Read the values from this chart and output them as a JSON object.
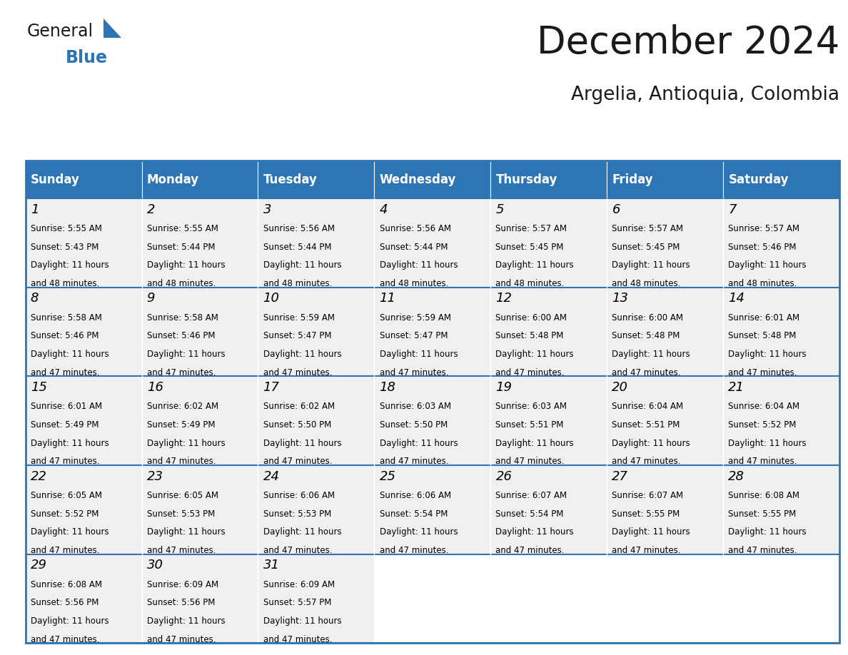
{
  "title": "December 2024",
  "subtitle": "Argelia, Antioquia, Colombia",
  "header_color": "#2E75B6",
  "header_text_color": "#FFFFFF",
  "day_names": [
    "Sunday",
    "Monday",
    "Tuesday",
    "Wednesday",
    "Thursday",
    "Friday",
    "Saturday"
  ],
  "cell_bg_color": "#F0F0F0",
  "border_color": "#2E75B6",
  "text_color": "#000000",
  "title_color": "#1a1a1a",
  "subtitle_color": "#1a1a1a",
  "logo_general_color": "#1a1a1a",
  "logo_blue_color": "#2E75B6",
  "logo_triangle_color": "#2E75B6",
  "days": [
    {
      "day": 1,
      "col": 0,
      "row": 0,
      "sunrise": "5:55 AM",
      "sunset": "5:43 PM",
      "daylight_hours": 11,
      "daylight_minutes": 48
    },
    {
      "day": 2,
      "col": 1,
      "row": 0,
      "sunrise": "5:55 AM",
      "sunset": "5:44 PM",
      "daylight_hours": 11,
      "daylight_minutes": 48
    },
    {
      "day": 3,
      "col": 2,
      "row": 0,
      "sunrise": "5:56 AM",
      "sunset": "5:44 PM",
      "daylight_hours": 11,
      "daylight_minutes": 48
    },
    {
      "day": 4,
      "col": 3,
      "row": 0,
      "sunrise": "5:56 AM",
      "sunset": "5:44 PM",
      "daylight_hours": 11,
      "daylight_minutes": 48
    },
    {
      "day": 5,
      "col": 4,
      "row": 0,
      "sunrise": "5:57 AM",
      "sunset": "5:45 PM",
      "daylight_hours": 11,
      "daylight_minutes": 48
    },
    {
      "day": 6,
      "col": 5,
      "row": 0,
      "sunrise": "5:57 AM",
      "sunset": "5:45 PM",
      "daylight_hours": 11,
      "daylight_minutes": 48
    },
    {
      "day": 7,
      "col": 6,
      "row": 0,
      "sunrise": "5:57 AM",
      "sunset": "5:46 PM",
      "daylight_hours": 11,
      "daylight_minutes": 48
    },
    {
      "day": 8,
      "col": 0,
      "row": 1,
      "sunrise": "5:58 AM",
      "sunset": "5:46 PM",
      "daylight_hours": 11,
      "daylight_minutes": 47
    },
    {
      "day": 9,
      "col": 1,
      "row": 1,
      "sunrise": "5:58 AM",
      "sunset": "5:46 PM",
      "daylight_hours": 11,
      "daylight_minutes": 47
    },
    {
      "day": 10,
      "col": 2,
      "row": 1,
      "sunrise": "5:59 AM",
      "sunset": "5:47 PM",
      "daylight_hours": 11,
      "daylight_minutes": 47
    },
    {
      "day": 11,
      "col": 3,
      "row": 1,
      "sunrise": "5:59 AM",
      "sunset": "5:47 PM",
      "daylight_hours": 11,
      "daylight_minutes": 47
    },
    {
      "day": 12,
      "col": 4,
      "row": 1,
      "sunrise": "6:00 AM",
      "sunset": "5:48 PM",
      "daylight_hours": 11,
      "daylight_minutes": 47
    },
    {
      "day": 13,
      "col": 5,
      "row": 1,
      "sunrise": "6:00 AM",
      "sunset": "5:48 PM",
      "daylight_hours": 11,
      "daylight_minutes": 47
    },
    {
      "day": 14,
      "col": 6,
      "row": 1,
      "sunrise": "6:01 AM",
      "sunset": "5:48 PM",
      "daylight_hours": 11,
      "daylight_minutes": 47
    },
    {
      "day": 15,
      "col": 0,
      "row": 2,
      "sunrise": "6:01 AM",
      "sunset": "5:49 PM",
      "daylight_hours": 11,
      "daylight_minutes": 47
    },
    {
      "day": 16,
      "col": 1,
      "row": 2,
      "sunrise": "6:02 AM",
      "sunset": "5:49 PM",
      "daylight_hours": 11,
      "daylight_minutes": 47
    },
    {
      "day": 17,
      "col": 2,
      "row": 2,
      "sunrise": "6:02 AM",
      "sunset": "5:50 PM",
      "daylight_hours": 11,
      "daylight_minutes": 47
    },
    {
      "day": 18,
      "col": 3,
      "row": 2,
      "sunrise": "6:03 AM",
      "sunset": "5:50 PM",
      "daylight_hours": 11,
      "daylight_minutes": 47
    },
    {
      "day": 19,
      "col": 4,
      "row": 2,
      "sunrise": "6:03 AM",
      "sunset": "5:51 PM",
      "daylight_hours": 11,
      "daylight_minutes": 47
    },
    {
      "day": 20,
      "col": 5,
      "row": 2,
      "sunrise": "6:04 AM",
      "sunset": "5:51 PM",
      "daylight_hours": 11,
      "daylight_minutes": 47
    },
    {
      "day": 21,
      "col": 6,
      "row": 2,
      "sunrise": "6:04 AM",
      "sunset": "5:52 PM",
      "daylight_hours": 11,
      "daylight_minutes": 47
    },
    {
      "day": 22,
      "col": 0,
      "row": 3,
      "sunrise": "6:05 AM",
      "sunset": "5:52 PM",
      "daylight_hours": 11,
      "daylight_minutes": 47
    },
    {
      "day": 23,
      "col": 1,
      "row": 3,
      "sunrise": "6:05 AM",
      "sunset": "5:53 PM",
      "daylight_hours": 11,
      "daylight_minutes": 47
    },
    {
      "day": 24,
      "col": 2,
      "row": 3,
      "sunrise": "6:06 AM",
      "sunset": "5:53 PM",
      "daylight_hours": 11,
      "daylight_minutes": 47
    },
    {
      "day": 25,
      "col": 3,
      "row": 3,
      "sunrise": "6:06 AM",
      "sunset": "5:54 PM",
      "daylight_hours": 11,
      "daylight_minutes": 47
    },
    {
      "day": 26,
      "col": 4,
      "row": 3,
      "sunrise": "6:07 AM",
      "sunset": "5:54 PM",
      "daylight_hours": 11,
      "daylight_minutes": 47
    },
    {
      "day": 27,
      "col": 5,
      "row": 3,
      "sunrise": "6:07 AM",
      "sunset": "5:55 PM",
      "daylight_hours": 11,
      "daylight_minutes": 47
    },
    {
      "day": 28,
      "col": 6,
      "row": 3,
      "sunrise": "6:08 AM",
      "sunset": "5:55 PM",
      "daylight_hours": 11,
      "daylight_minutes": 47
    },
    {
      "day": 29,
      "col": 0,
      "row": 4,
      "sunrise": "6:08 AM",
      "sunset": "5:56 PM",
      "daylight_hours": 11,
      "daylight_minutes": 47
    },
    {
      "day": 30,
      "col": 1,
      "row": 4,
      "sunrise": "6:09 AM",
      "sunset": "5:56 PM",
      "daylight_hours": 11,
      "daylight_minutes": 47
    },
    {
      "day": 31,
      "col": 2,
      "row": 4,
      "sunrise": "6:09 AM",
      "sunset": "5:57 PM",
      "daylight_hours": 11,
      "daylight_minutes": 47
    }
  ]
}
